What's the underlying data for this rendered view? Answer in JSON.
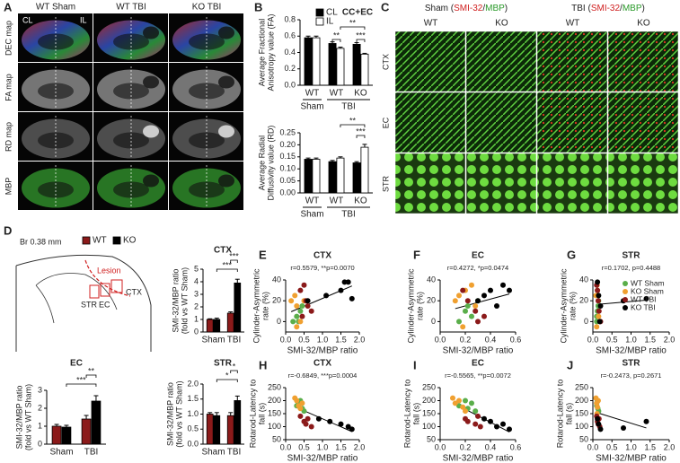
{
  "panel_labels": [
    "A",
    "B",
    "C",
    "D",
    "E",
    "F",
    "G",
    "H",
    "I",
    "J"
  ],
  "panel_a": {
    "columns": [
      "WT Sham",
      "WT TBI",
      "KO TBI"
    ],
    "rows": [
      "DEC map",
      "FA map",
      "RD map",
      "MBP"
    ],
    "sides": [
      "CL",
      "IL"
    ]
  },
  "panel_c": {
    "column_groups": [
      {
        "parts": [
          "Sham (",
          "SMI-32",
          "/",
          "MBP",
          ")"
        ]
      },
      {
        "parts": [
          "TBI (",
          "SMI-32",
          "/",
          "MBP",
          ")"
        ]
      }
    ],
    "columns": [
      "WT",
      "KO",
      "WT",
      "KO"
    ],
    "rows": [
      "CTX",
      "EC",
      "STR"
    ]
  },
  "panel_d_diagram": {
    "bregma": "Br 0.38 mm",
    "lesion": "Lesion",
    "regions": [
      "STR",
      "EC",
      "CTX"
    ]
  },
  "chart_data": [
    {
      "type": "bar",
      "title": "CC+EC",
      "ylabel": [
        "Average Fractional",
        "Anisotropy value (FA)"
      ],
      "categories": [
        "WT",
        "WT",
        "KO"
      ],
      "category_groups": [
        "Sham",
        "TBI",
        null
      ],
      "series": [
        {
          "name": "CL",
          "color": "#000000",
          "values": [
            0.58,
            0.51,
            0.5
          ],
          "errors": [
            0.02,
            0.02,
            0.02
          ]
        },
        {
          "name": "IL",
          "color": "#ffffff",
          "values": [
            0.58,
            0.45,
            0.38
          ],
          "errors": [
            0.02,
            0.015,
            0.01
          ]
        }
      ],
      "ylim": [
        0,
        0.8
      ],
      "yticks": [
        {
          "value": 0,
          "label": "0.0"
        },
        0.2,
        0.4,
        0.6,
        0.8
      ],
      "legend": true,
      "annotations": [
        "**",
        "***",
        "**"
      ]
    },
    {
      "type": "bar",
      "ylabel": [
        "Average Radial",
        "Diffusivity value (RD)"
      ],
      "categories": [
        "WT",
        "WT",
        "KO"
      ],
      "category_groups": [
        "Sham",
        "TBI",
        null
      ],
      "series": [
        {
          "color": "#000000",
          "values": [
            0.14,
            0.13,
            0.125
          ],
          "errors": [
            0.005,
            0.005,
            0.005
          ]
        },
        {
          "color": "#ffffff",
          "values": [
            0.14,
            0.145,
            0.19
          ],
          "errors": [
            0.005,
            0.005,
            0.012
          ]
        }
      ],
      "ylim": [
        0,
        0.25
      ],
      "yticks": [
        {
          "value": 0,
          "label": "0.00"
        },
        0.05,
        {
          "value": 0.1,
          "label": "0.10"
        },
        0.15,
        {
          "value": 0.2,
          "label": "0.20"
        },
        0.25
      ],
      "annotations": [
        "**",
        "***"
      ]
    },
    {
      "type": "bar",
      "title": "CTX",
      "ylabel": [
        "SMI-32/MBP ratio",
        "(fold vs WT Sham)"
      ],
      "categories": [
        "Sham",
        "TBI"
      ],
      "series": [
        {
          "name": "WT",
          "color": "#8b1a1a",
          "values": [
            1.0,
            1.5
          ],
          "errors": [
            0.05,
            0.1
          ]
        },
        {
          "name": "KO",
          "color": "#000000",
          "values": [
            1.0,
            3.9
          ],
          "errors": [
            0.1,
            0.3
          ]
        }
      ],
      "ylim": [
        0,
        5
      ],
      "yticks": [
        0,
        1,
        2,
        3,
        4,
        5
      ],
      "legend": true,
      "annotations": [
        "***",
        "***"
      ]
    },
    {
      "type": "bar",
      "title": "EC",
      "ylabel": [
        "SMI-32/MBP ratio",
        "(fold vs WT Sham)"
      ],
      "categories": [
        "Sham",
        "TBI"
      ],
      "series": [
        {
          "color": "#8b1a1a",
          "values": [
            1.0,
            1.4
          ],
          "errors": [
            0.1,
            0.2
          ]
        },
        {
          "color": "#000000",
          "values": [
            0.95,
            2.4
          ],
          "errors": [
            0.1,
            0.3
          ]
        }
      ],
      "ylim": [
        0,
        3
      ],
      "yticks": [
        0,
        1,
        2,
        3
      ],
      "annotations": [
        "**",
        "***"
      ]
    },
    {
      "type": "bar",
      "title": "STR",
      "ylabel": [
        "SMI-32/MBP ratio",
        "(fold vs WT Sham)"
      ],
      "categories": [
        "Sham",
        "TBI"
      ],
      "series": [
        {
          "color": "#8b1a1a",
          "values": [
            1.0,
            0.95
          ],
          "errors": [
            0.05,
            0.1
          ]
        },
        {
          "color": "#000000",
          "values": [
            0.95,
            1.45
          ],
          "errors": [
            0.1,
            0.15
          ]
        }
      ],
      "ylim": [
        0,
        2
      ],
      "yticks": [
        {
          "value": 0,
          "label": "0.0"
        },
        0.5,
        {
          "value": 1,
          "label": "1.0"
        },
        1.5,
        {
          "value": 2,
          "label": "2.0"
        }
      ],
      "annotations": [
        "*",
        "*"
      ]
    },
    {
      "type": "scatter",
      "title": "CTX",
      "annotation": "r=0.5579, **p=0.0070",
      "xlabel": "SMI-32/MBP ratio",
      "ylabel": [
        "Cylinder-Asymmetric",
        "rate (%)"
      ],
      "xlim": [
        0,
        2
      ],
      "xticks": [
        {
          "value": 0,
          "label": "0.0"
        },
        0.5,
        {
          "value": 1,
          "label": "1.0"
        },
        1.5,
        {
          "value": 2,
          "label": "2.0"
        }
      ],
      "ylim": [
        -10,
        40
      ],
      "yticks": [
        0,
        20,
        40
      ],
      "series": [
        {
          "color": "#5aae4a",
          "x": [
            0.2,
            0.3,
            0.35,
            0.4,
            0.45
          ],
          "values": [
            0,
            5,
            0,
            10,
            15
          ]
        },
        {
          "color": "#f0a030",
          "x": [
            0.15,
            0.25,
            0.3,
            0.4,
            0.5,
            0.3
          ],
          "values": [
            20,
            25,
            15,
            0,
            20,
            -5
          ]
        },
        {
          "color": "#8b1a1a",
          "x": [
            0.4,
            0.5,
            0.55,
            0.6,
            0.7,
            0.45
          ],
          "values": [
            30,
            35,
            20,
            15,
            10,
            5
          ]
        },
        {
          "color": "#000000",
          "x": [
            0.6,
            1.1,
            1.5,
            1.6,
            1.7,
            1.8
          ],
          "values": [
            20,
            25,
            30,
            38,
            38,
            22
          ]
        }
      ]
    },
    {
      "type": "scatter",
      "title": "EC",
      "annotation": "r=0.4272, *p=0.0474",
      "xlabel": "SMI-32/MBP ratio",
      "ylabel": [
        "Cylinder-Asymmetric",
        "rate (%)"
      ],
      "xlim": [
        0,
        0.6
      ],
      "xticks": [
        {
          "value": 0,
          "label": "0.0"
        },
        0.2,
        0.4,
        0.6
      ],
      "ylim": [
        -10,
        40
      ],
      "yticks": [
        0,
        20,
        40
      ],
      "series": [
        {
          "color": "#5aae4a",
          "x": [
            0.15,
            0.2,
            0.22,
            0.25,
            0.3
          ],
          "values": [
            0,
            10,
            15,
            5,
            20
          ]
        },
        {
          "color": "#f0a030",
          "x": [
            0.12,
            0.15,
            0.2,
            0.25,
            0.28,
            0.18
          ],
          "values": [
            20,
            25,
            30,
            35,
            15,
            -5
          ]
        },
        {
          "color": "#8b1a1a",
          "x": [
            0.18,
            0.22,
            0.28,
            0.3,
            0.35
          ],
          "values": [
            30,
            20,
            10,
            0,
            5
          ]
        },
        {
          "color": "#000000",
          "x": [
            0.3,
            0.35,
            0.4,
            0.45,
            0.5,
            0.55
          ],
          "values": [
            20,
            25,
            30,
            15,
            35,
            30
          ]
        }
      ]
    },
    {
      "type": "scatter",
      "title": "STR",
      "annotation": "r=0.1702, p=0.4488",
      "xlabel": "SMI-32/MBP ratio",
      "ylabel": [
        "Cylinder-Asymmetric",
        "rate (%)"
      ],
      "xlim": [
        0,
        2
      ],
      "xticks": [
        {
          "value": 0,
          "label": "0.0"
        },
        0.5,
        {
          "value": 1,
          "label": "1.0"
        },
        1.5,
        {
          "value": 2,
          "label": "2.0"
        }
      ],
      "ylim": [
        -10,
        40
      ],
      "yticks": [
        0,
        20,
        40
      ],
      "legend": true,
      "series": [
        {
          "name": "WT Sham",
          "color": "#5aae4a",
          "x": [
            0.1,
            0.12,
            0.15,
            0.1,
            0.14
          ],
          "values": [
            0,
            10,
            20,
            5,
            15
          ]
        },
        {
          "name": "KO Sham",
          "color": "#f0a030",
          "x": [
            0.08,
            0.1,
            0.12,
            0.15,
            0.11
          ],
          "values": [
            25,
            -5,
            30,
            5,
            35
          ]
        },
        {
          "name": "WT TBI",
          "color": "#8b1a1a",
          "x": [
            0.1,
            0.12,
            0.14,
            0.16,
            0.2
          ],
          "values": [
            35,
            30,
            20,
            10,
            0
          ]
        },
        {
          "name": "KO TBI",
          "color": "#000000",
          "x": [
            0.12,
            0.15,
            0.2,
            0.8,
            1.4,
            0.18
          ],
          "values": [
            38,
            25,
            15,
            20,
            22,
            0
          ]
        }
      ]
    },
    {
      "type": "scatter",
      "title": "CTX",
      "annotation": "r=-0.6849, ***p=0.0004",
      "xlabel": "SMI-32/MBP ratio",
      "ylabel": [
        "Rotarod-Latency to",
        "fall (s)"
      ],
      "xlim": [
        0,
        2
      ],
      "xticks": [
        {
          "value": 0,
          "label": "0.0"
        },
        0.5,
        {
          "value": 1,
          "label": "1.0"
        },
        1.5,
        {
          "value": 2,
          "label": "2.0"
        }
      ],
      "ylim": [
        50,
        250
      ],
      "yticks": [
        50,
        100,
        150,
        200,
        250
      ],
      "series": [
        {
          "color": "#5aae4a",
          "x": [
            0.3,
            0.35,
            0.4,
            0.45,
            0.5
          ],
          "values": [
            180,
            190,
            200,
            170,
            160
          ]
        },
        {
          "color": "#f0a030",
          "x": [
            0.25,
            0.3,
            0.35,
            0.4,
            0.45
          ],
          "values": [
            210,
            200,
            180,
            170,
            190
          ]
        },
        {
          "color": "#8b1a1a",
          "x": [
            0.4,
            0.5,
            0.55,
            0.6,
            0.7
          ],
          "values": [
            140,
            120,
            110,
            130,
            100
          ]
        },
        {
          "color": "#000000",
          "x": [
            0.9,
            1.2,
            1.5,
            1.7,
            1.8
          ],
          "values": [
            130,
            120,
            110,
            100,
            90
          ]
        }
      ]
    },
    {
      "type": "scatter",
      "title": "EC",
      "annotation": "r=-0.5565, **p=0.0072",
      "xlabel": "SMI-32/MBP ratio",
      "ylabel": [
        "Rotarod-Latency to",
        "fall (s)"
      ],
      "xlim": [
        0,
        0.6
      ],
      "xticks": [
        {
          "value": 0,
          "label": "0.0"
        },
        0.2,
        0.4,
        0.6
      ],
      "ylim": [
        50,
        250
      ],
      "yticks": [
        50,
        100,
        150,
        200,
        250
      ],
      "series": [
        {
          "color": "#5aae4a",
          "x": [
            0.15,
            0.2,
            0.22,
            0.25,
            0.28
          ],
          "values": [
            180,
            200,
            170,
            190,
            160
          ]
        },
        {
          "color": "#f0a030",
          "x": [
            0.1,
            0.12,
            0.15,
            0.18,
            0.2
          ],
          "values": [
            210,
            190,
            200,
            175,
            160
          ]
        },
        {
          "color": "#8b1a1a",
          "x": [
            0.2,
            0.22,
            0.28,
            0.3,
            0.32
          ],
          "values": [
            130,
            120,
            110,
            140,
            100
          ]
        },
        {
          "color": "#000000",
          "x": [
            0.35,
            0.4,
            0.45,
            0.5,
            0.55
          ],
          "values": [
            130,
            120,
            100,
            110,
            90
          ]
        }
      ]
    },
    {
      "type": "scatter",
      "title": "STR",
      "annotation": "r=-0.2473, p=0.2671",
      "xlabel": "SMI-32/MBP ratio",
      "ylabel": [
        "Rotarod-Latency to",
        "fall (s)"
      ],
      "xlim": [
        0,
        2
      ],
      "xticks": [
        {
          "value": 0,
          "label": "0.0"
        },
        0.5,
        {
          "value": 1,
          "label": "1.0"
        },
        1.5,
        {
          "value": 2,
          "label": "2.0"
        }
      ],
      "ylim": [
        50,
        250
      ],
      "yticks": [
        50,
        100,
        150,
        200,
        250
      ],
      "series": [
        {
          "color": "#5aae4a",
          "x": [
            0.1,
            0.12,
            0.15,
            0.13,
            0.1
          ],
          "values": [
            180,
            200,
            160,
            170,
            190
          ]
        },
        {
          "color": "#f0a030",
          "x": [
            0.08,
            0.1,
            0.12,
            0.11,
            0.14
          ],
          "values": [
            210,
            190,
            175,
            150,
            200
          ]
        },
        {
          "color": "#8b1a1a",
          "x": [
            0.1,
            0.12,
            0.14,
            0.16,
            0.18
          ],
          "values": [
            140,
            120,
            110,
            130,
            100
          ]
        },
        {
          "color": "#000000",
          "x": [
            0.12,
            0.15,
            0.2,
            0.8,
            1.4
          ],
          "values": [
            130,
            110,
            90,
            95,
            120
          ]
        }
      ]
    }
  ]
}
